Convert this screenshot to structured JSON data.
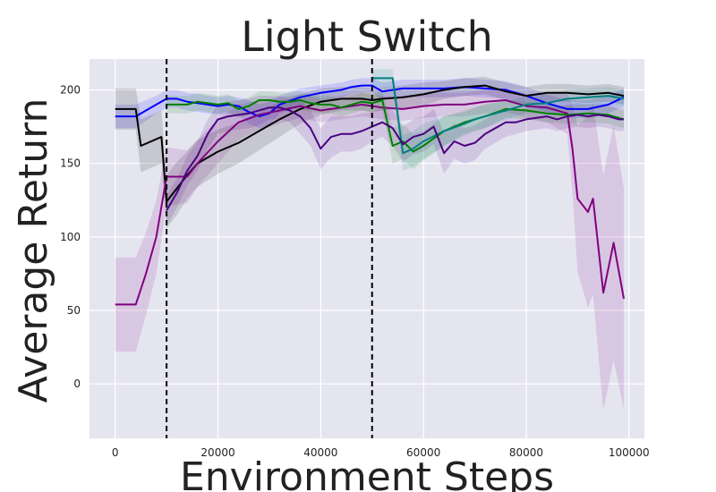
{
  "chart_data": {
    "type": "line",
    "title": "Light Switch",
    "xlabel": "Environment Steps",
    "ylabel": "Average Return",
    "xlim": [
      -5000,
      103000
    ],
    "ylim": [
      -37,
      221
    ],
    "xticks": [
      0,
      20000,
      40000,
      60000,
      80000,
      100000
    ],
    "yticks": [
      0,
      50,
      100,
      150,
      200
    ],
    "grid": true,
    "vlines": [
      10000,
      50000
    ],
    "series": [
      {
        "color": "#0000ff",
        "x": [
          0,
          4000,
          8000,
          10000,
          12000,
          14000,
          16000,
          18000,
          20000,
          22000,
          24000,
          26000,
          28000,
          30000,
          32000,
          36000,
          40000,
          44000,
          46000,
          48000,
          50000,
          52000,
          56000,
          60000,
          64000,
          68000,
          72000,
          76000,
          80000,
          84000,
          88000,
          92000,
          96000,
          99000
        ],
        "y": [
          182,
          182,
          190,
          194,
          194,
          192,
          191,
          190,
          189,
          190,
          189,
          185,
          182,
          184,
          190,
          195,
          198,
          200,
          202,
          203,
          203,
          199,
          201,
          201,
          201,
          202,
          201,
          200,
          196,
          191,
          187,
          187,
          190,
          195
        ],
        "band": [
          8,
          8,
          6,
          6,
          6,
          6,
          6,
          6,
          6,
          6,
          6,
          8,
          8,
          8,
          6,
          6,
          5,
          5,
          5,
          5,
          5,
          6,
          6,
          6,
          6,
          6,
          6,
          6,
          6,
          6,
          6,
          6,
          6,
          6
        ]
      },
      {
        "color": "#000000",
        "x": [
          0,
          4000,
          5000,
          9000,
          10000,
          12000,
          14000,
          16000,
          20000,
          24000,
          28000,
          32000,
          36000,
          40000,
          44000,
          48000,
          50000,
          52000,
          56000,
          60000,
          64000,
          68000,
          72000,
          76000,
          80000,
          84000,
          88000,
          92000,
          96000,
          99000
        ],
        "y": [
          187,
          187,
          162,
          168,
          124,
          133,
          142,
          150,
          158,
          164,
          172,
          180,
          187,
          192,
          194,
          194,
          193,
          194,
          195,
          197,
          200,
          202,
          203,
          199,
          196,
          198,
          198,
          197,
          198,
          196
        ],
        "band": [
          14,
          14,
          18,
          18,
          18,
          18,
          16,
          16,
          15,
          14,
          13,
          12,
          10,
          9,
          8,
          8,
          8,
          8,
          8,
          8,
          6,
          6,
          6,
          6,
          6,
          6,
          6,
          6,
          6,
          6
        ]
      },
      {
        "color": "#800080",
        "x": [
          0,
          4000,
          6000,
          8000,
          10000,
          14000,
          16000,
          20000,
          24000,
          28000,
          32000,
          36000,
          40000,
          44000,
          48000,
          52000,
          56000,
          60000,
          64000,
          68000,
          72000,
          76000,
          80000,
          84000,
          88000,
          89000,
          90000,
          92000,
          93000,
          95000,
          97000,
          99000
        ],
        "y": [
          54,
          54,
          75,
          100,
          141,
          141,
          150,
          165,
          178,
          183,
          186,
          189,
          186,
          188,
          190,
          188,
          187,
          189,
          190,
          190,
          192,
          193,
          189,
          188,
          184,
          160,
          126,
          117,
          126,
          62,
          96,
          58
        ],
        "band": [
          32,
          32,
          28,
          25,
          20,
          18,
          16,
          15,
          12,
          10,
          9,
          8,
          8,
          8,
          8,
          8,
          8,
          8,
          8,
          8,
          8,
          8,
          8,
          10,
          14,
          30,
          50,
          65,
          65,
          80,
          80,
          75
        ]
      },
      {
        "color": "#008000",
        "x": [
          10000,
          12000,
          14000,
          16000,
          18000,
          20000,
          22000,
          24000,
          26000,
          28000,
          30000,
          32000,
          34000,
          36000,
          38000,
          40000,
          42000,
          44000,
          46000,
          48000,
          50000,
          52000,
          54000,
          56000,
          58000,
          60000,
          64000,
          68000,
          72000,
          76000,
          80000,
          84000,
          88000,
          92000,
          96000,
          99000
        ],
        "y": [
          190,
          190,
          190,
          192,
          191,
          190,
          191,
          187,
          189,
          193,
          193,
          192,
          192,
          193,
          191,
          190,
          190,
          188,
          190,
          192,
          191,
          193,
          162,
          165,
          158,
          162,
          172,
          178,
          182,
          187,
          186,
          184,
          183,
          184,
          183,
          180
        ],
        "band": [
          6,
          6,
          6,
          6,
          6,
          6,
          6,
          6,
          6,
          6,
          6,
          6,
          6,
          6,
          6,
          6,
          6,
          6,
          6,
          6,
          6,
          6,
          12,
          12,
          12,
          10,
          10,
          8,
          8,
          6,
          6,
          6,
          6,
          6,
          6,
          6
        ]
      },
      {
        "color": "#008080",
        "x": [
          50000,
          52000,
          54000,
          56000,
          58000,
          60000,
          64000,
          68000,
          70000,
          72000,
          76000,
          80000,
          84000,
          88000,
          92000,
          96000,
          99000
        ],
        "y": [
          208,
          208,
          208,
          157,
          160,
          165,
          172,
          177,
          180,
          182,
          186,
          190,
          191,
          194,
          195,
          196,
          194
        ],
        "band": [
          6,
          6,
          6,
          12,
          12,
          12,
          10,
          8,
          8,
          8,
          6,
          6,
          6,
          6,
          6,
          6,
          6
        ]
      },
      {
        "color": "#4b0082",
        "x": [
          10000,
          12000,
          14000,
          16000,
          18000,
          20000,
          22000,
          24000,
          26000,
          28000,
          30000,
          32000,
          34000,
          36000,
          38000,
          40000,
          42000,
          44000,
          46000,
          48000,
          50000,
          52000,
          54000,
          56000,
          58000,
          60000,
          62000,
          64000,
          66000,
          68000,
          70000,
          72000,
          74000,
          76000,
          78000,
          80000,
          82000,
          84000,
          86000,
          88000,
          90000,
          92000,
          94000,
          96000,
          98000,
          99000
        ],
        "y": [
          118,
          130,
          145,
          155,
          170,
          180,
          182,
          183,
          184,
          186,
          188,
          188,
          186,
          182,
          174,
          160,
          168,
          170,
          170,
          172,
          175,
          178,
          174,
          163,
          168,
          170,
          175,
          157,
          165,
          162,
          164,
          170,
          174,
          178,
          178,
          180,
          181,
          182,
          180,
          182,
          183,
          182,
          183,
          182,
          180,
          180
        ],
        "band": [
          10,
          10,
          10,
          10,
          10,
          10,
          10,
          10,
          10,
          10,
          8,
          8,
          8,
          12,
          12,
          14,
          14,
          12,
          12,
          12,
          10,
          10,
          12,
          12,
          12,
          12,
          12,
          14,
          12,
          12,
          12,
          10,
          10,
          10,
          8,
          8,
          8,
          8,
          8,
          8,
          8,
          8,
          8,
          8,
          8,
          8
        ]
      }
    ]
  }
}
